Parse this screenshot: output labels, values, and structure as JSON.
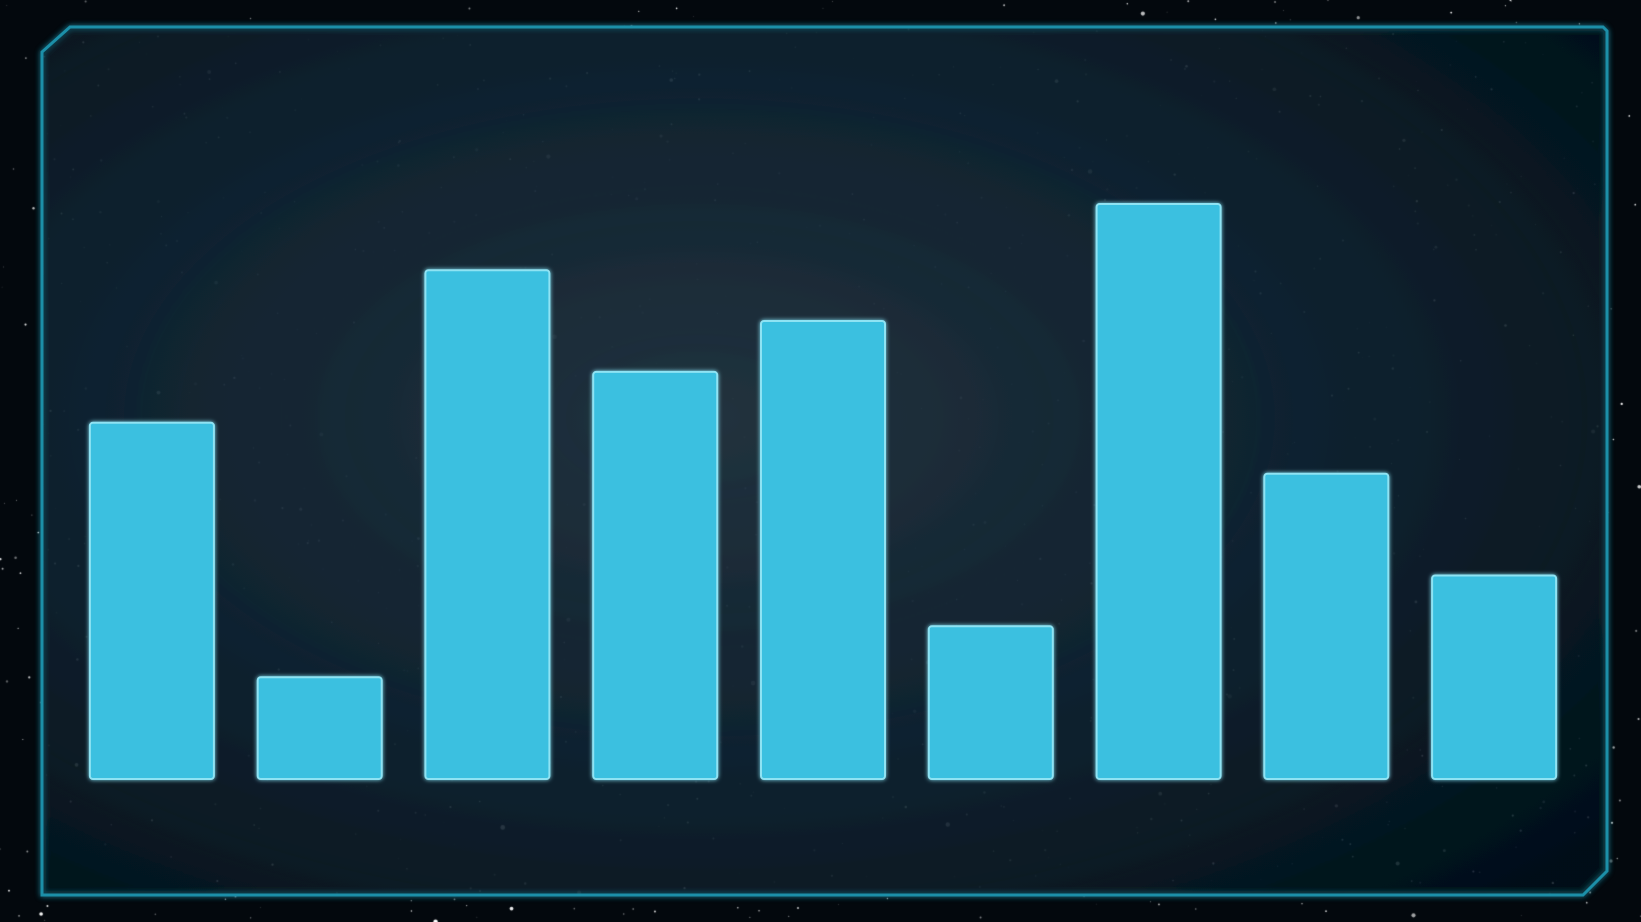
{
  "chart_data": {
    "type": "bar",
    "categories": [
      "",
      "",
      "",
      "",
      "",
      "",
      "",
      "",
      ""
    ],
    "values": [
      7,
      2,
      10,
      8,
      9,
      3,
      11.3,
      6,
      4
    ],
    "title": "",
    "xlabel": "",
    "ylabel": "",
    "ylim": [
      0,
      11.3
    ],
    "grid": false,
    "legend": "none"
  },
  "theme": {
    "background": "#03080d",
    "panel_fill": "#0c1c27",
    "panel_border": "#1a8fa8",
    "bar_fill": "#3bc0e0",
    "bar_border": "#8fe3f3",
    "star_color": "#ffffff"
  }
}
